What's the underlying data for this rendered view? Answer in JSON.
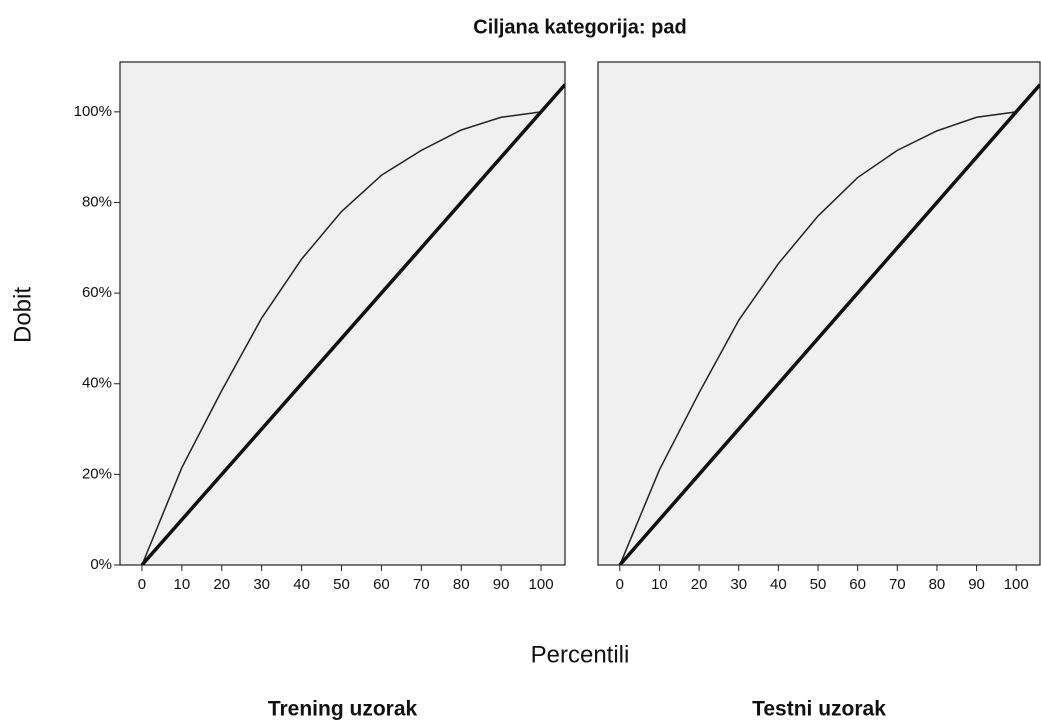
{
  "title": "Ciljana kategorija: pad",
  "y_label": "Dobit",
  "x_label": "Percentili",
  "chart_data": [
    {
      "type": "line",
      "subtitle": "Trening uzorak",
      "xlim": [
        -5.5,
        106
      ],
      "ylim": [
        0,
        111
      ],
      "xticks": [
        0,
        10,
        20,
        30,
        40,
        50,
        60,
        70,
        80,
        90,
        100
      ],
      "yticks": [
        {
          "value": 0,
          "label": "0%"
        },
        {
          "value": 20,
          "label": "20%"
        },
        {
          "value": 40,
          "label": "40%"
        },
        {
          "value": 60,
          "label": "60%"
        },
        {
          "value": 80,
          "label": "80%"
        },
        {
          "value": 100,
          "label": "100%"
        }
      ],
      "series": [
        {
          "color": "#222222",
          "x": [
            0,
            10,
            20,
            30,
            40,
            50,
            60,
            70,
            80,
            90,
            100
          ],
          "values": [
            0,
            21.5,
            38.5,
            54.5,
            67.5,
            78,
            86,
            91.5,
            96,
            98.8,
            100
          ]
        },
        {
          "color": "#111111",
          "x": [
            0,
            106
          ],
          "values": [
            0,
            106
          ]
        }
      ]
    },
    {
      "type": "line",
      "subtitle": "Testni uzorak",
      "xlim": [
        -5.5,
        106
      ],
      "ylim": [
        0,
        111
      ],
      "xticks": [
        0,
        10,
        20,
        30,
        40,
        50,
        60,
        70,
        80,
        90,
        100
      ],
      "series": [
        {
          "color": "#222222",
          "x": [
            0,
            10,
            20,
            30,
            40,
            50,
            60,
            70,
            80,
            90,
            100
          ],
          "values": [
            0,
            21,
            38,
            54,
            66.5,
            77,
            85.5,
            91.5,
            95.8,
            98.8,
            100
          ]
        },
        {
          "color": "#111111",
          "x": [
            0,
            106
          ],
          "values": [
            0,
            106
          ]
        }
      ]
    }
  ]
}
